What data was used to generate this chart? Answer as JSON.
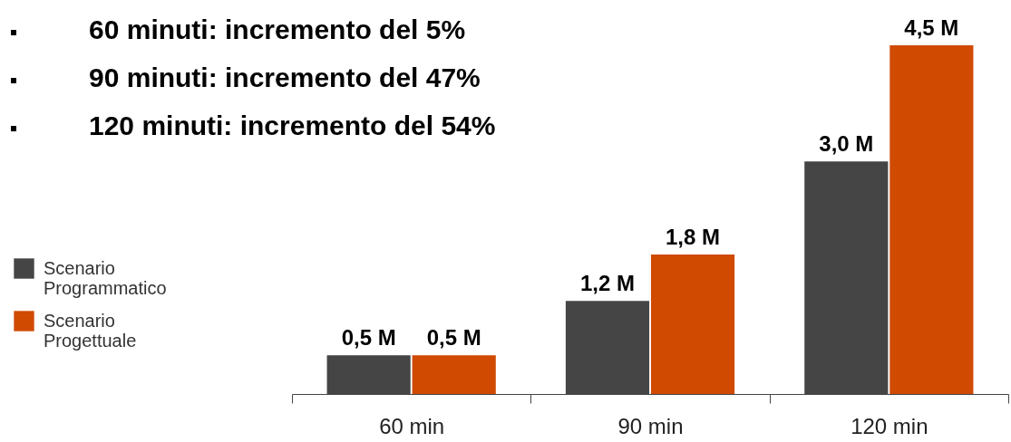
{
  "chart_data": {
    "type": "bar",
    "categories": [
      "60 min",
      "90 min",
      "120 min"
    ],
    "series": [
      {
        "name": "Scenario Programmatico",
        "color": "#454545",
        "values": [
          0.5,
          1.2,
          3.0
        ],
        "value_labels": [
          "0,5 M",
          "1,2 M",
          "3,0 M"
        ]
      },
      {
        "name": "Scenario Progettuale",
        "color": "#d04a02",
        "values": [
          0.5,
          1.8,
          4.5
        ],
        "value_labels": [
          "0,5 M",
          "1,8 M",
          "4,5 M"
        ]
      }
    ],
    "annotations": [
      "60 minuti: incremento del 5%",
      "90 minuti: incremento del 47%",
      "120 minuti: incremento del 54%"
    ],
    "legend": "left",
    "grid": false
  }
}
